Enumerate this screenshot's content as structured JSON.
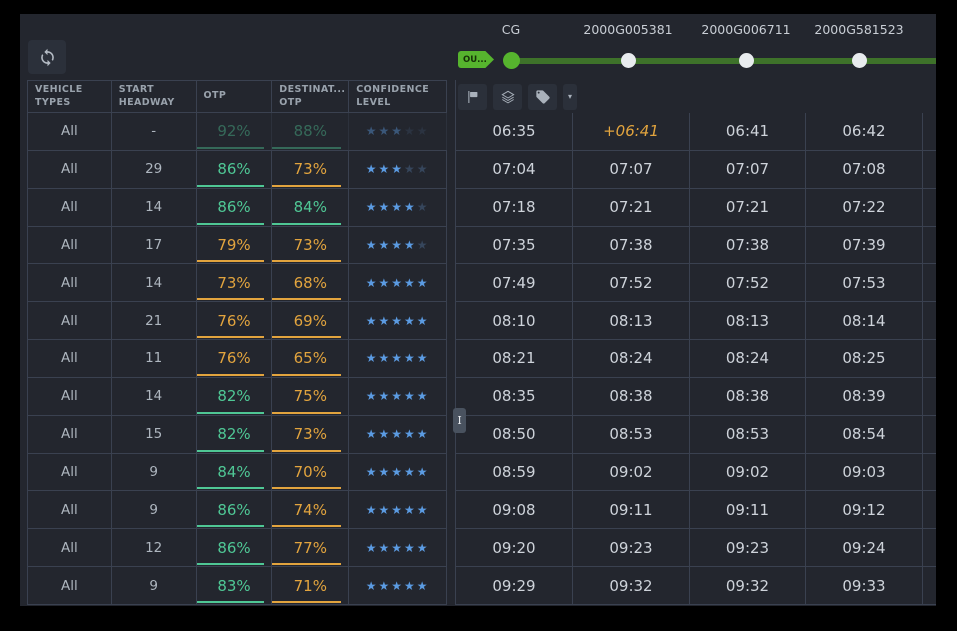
{
  "colors": {
    "green": "#4fc795",
    "orange": "#e2a43e",
    "star_blue": "#5b9be2",
    "star_off": "#36465c",
    "badge_green": "#56b42e",
    "line_green": "#3e722a"
  },
  "left_panel": {
    "refresh_icon": "refresh-sync",
    "table": {
      "columns": [
        "VEHICLE\nTYPES",
        "START\nHEADWAY",
        "OTP",
        "DESTINAT...\nOTP",
        "CONFIDENCE\nLEVEL"
      ],
      "rows": [
        {
          "vehicle_types": "All",
          "start_headway": "-",
          "otp": "92%",
          "otp_color": "green",
          "dest_otp": "88%",
          "dest_otp_color": "green",
          "stars": 3,
          "faded": true
        },
        {
          "vehicle_types": "All",
          "start_headway": "29",
          "otp": "86%",
          "otp_color": "green",
          "dest_otp": "73%",
          "dest_otp_color": "orange",
          "stars": 3,
          "faded": false
        },
        {
          "vehicle_types": "All",
          "start_headway": "14",
          "otp": "86%",
          "otp_color": "green",
          "dest_otp": "84%",
          "dest_otp_color": "green",
          "stars": 4,
          "faded": false
        },
        {
          "vehicle_types": "All",
          "start_headway": "17",
          "otp": "79%",
          "otp_color": "orange",
          "dest_otp": "73%",
          "dest_otp_color": "orange",
          "stars": 4,
          "faded": false
        },
        {
          "vehicle_types": "All",
          "start_headway": "14",
          "otp": "73%",
          "otp_color": "orange",
          "dest_otp": "68%",
          "dest_otp_color": "orange",
          "stars": 5,
          "faded": false
        },
        {
          "vehicle_types": "All",
          "start_headway": "21",
          "otp": "76%",
          "otp_color": "orange",
          "dest_otp": "69%",
          "dest_otp_color": "orange",
          "stars": 5,
          "faded": false
        },
        {
          "vehicle_types": "All",
          "start_headway": "11",
          "otp": "76%",
          "otp_color": "orange",
          "dest_otp": "65%",
          "dest_otp_color": "orange",
          "stars": 5,
          "faded": false
        },
        {
          "vehicle_types": "All",
          "start_headway": "14",
          "otp": "82%",
          "otp_color": "green",
          "dest_otp": "75%",
          "dest_otp_color": "orange",
          "stars": 5,
          "faded": false
        },
        {
          "vehicle_types": "All",
          "start_headway": "15",
          "otp": "82%",
          "otp_color": "green",
          "dest_otp": "73%",
          "dest_otp_color": "orange",
          "stars": 5,
          "faded": false
        },
        {
          "vehicle_types": "All",
          "start_headway": "9",
          "otp": "84%",
          "otp_color": "green",
          "dest_otp": "70%",
          "dest_otp_color": "orange",
          "stars": 5,
          "faded": false
        },
        {
          "vehicle_types": "All",
          "start_headway": "9",
          "otp": "86%",
          "otp_color": "green",
          "dest_otp": "74%",
          "dest_otp_color": "orange",
          "stars": 5,
          "faded": false
        },
        {
          "vehicle_types": "All",
          "start_headway": "12",
          "otp": "86%",
          "otp_color": "green",
          "dest_otp": "77%",
          "dest_otp_color": "orange",
          "stars": 5,
          "faded": false
        },
        {
          "vehicle_types": "All",
          "start_headway": "9",
          "otp": "83%",
          "otp_color": "green",
          "dest_otp": "71%",
          "dest_otp_color": "orange",
          "stars": 5,
          "faded": false
        }
      ]
    }
  },
  "splitter": {
    "label": "I"
  },
  "right_panel": {
    "direction_badge": "OU...",
    "stops": [
      "CG",
      "2000G005381",
      "2000G006711",
      "2000G581523"
    ],
    "toolbar": {
      "icons": [
        "flag",
        "layers",
        "tag"
      ],
      "caret": "▾"
    },
    "timetable": {
      "rows": [
        [
          "06:35",
          "+06:41",
          "06:41",
          "06:42"
        ],
        [
          "07:04",
          "07:07",
          "07:07",
          "07:08"
        ],
        [
          "07:18",
          "07:21",
          "07:21",
          "07:22"
        ],
        [
          "07:35",
          "07:38",
          "07:38",
          "07:39"
        ],
        [
          "07:49",
          "07:52",
          "07:52",
          "07:53"
        ],
        [
          "08:10",
          "08:13",
          "08:13",
          "08:14"
        ],
        [
          "08:21",
          "08:24",
          "08:24",
          "08:25"
        ],
        [
          "08:35",
          "08:38",
          "08:38",
          "08:39"
        ],
        [
          "08:50",
          "08:53",
          "08:53",
          "08:54"
        ],
        [
          "08:59",
          "09:02",
          "09:02",
          "09:03"
        ],
        [
          "09:08",
          "09:11",
          "09:11",
          "09:12"
        ],
        [
          "09:20",
          "09:23",
          "09:23",
          "09:24"
        ],
        [
          "09:29",
          "09:32",
          "09:32",
          "09:33"
        ]
      ],
      "modified_cells": [
        [
          0,
          1
        ]
      ]
    }
  }
}
